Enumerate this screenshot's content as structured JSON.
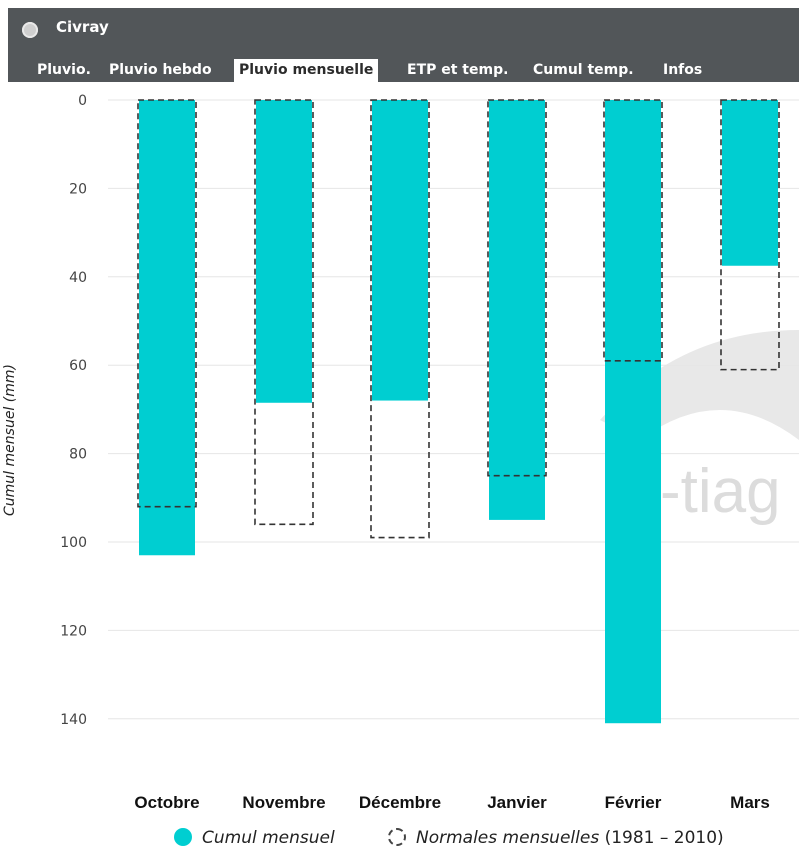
{
  "window": {
    "title": "Civray"
  },
  "tabs": [
    {
      "label": "Pluvio."
    },
    {
      "label": "Pluvio hebdo"
    },
    {
      "label": "Pluvio mensuelle",
      "active": true
    },
    {
      "label": "ETP et temp."
    },
    {
      "label": "Cumul temp."
    },
    {
      "label": "Infos"
    }
  ],
  "colors": {
    "bar": "#00ced1",
    "header": "#525659",
    "grid": "#e6e6e6",
    "watermark": "#d9d9d9"
  },
  "watermark_text": "-tiag",
  "legend": {
    "series1": "Cumul mensuel",
    "series2_italic": "Normales mensuelles",
    "series2_rest": " (1981 – 2010)"
  },
  "chart_data": {
    "type": "bar",
    "ylabel": "Cumul mensuel (mm)",
    "y_inverted": true,
    "ylim": [
      0,
      140
    ],
    "yticks": [
      0,
      20,
      40,
      60,
      80,
      100,
      120,
      140
    ],
    "categories": [
      "Octobre",
      "Novembre",
      "Décembre",
      "Janvier",
      "Février",
      "Mars"
    ],
    "series": [
      {
        "name": "Cumul mensuel",
        "values": [
          103,
          68.5,
          68,
          95,
          141,
          37.5
        ]
      },
      {
        "name": "Normales mensuelles (1981 – 2010)",
        "values": [
          92,
          96,
          99,
          85,
          59,
          61
        ]
      }
    ]
  }
}
